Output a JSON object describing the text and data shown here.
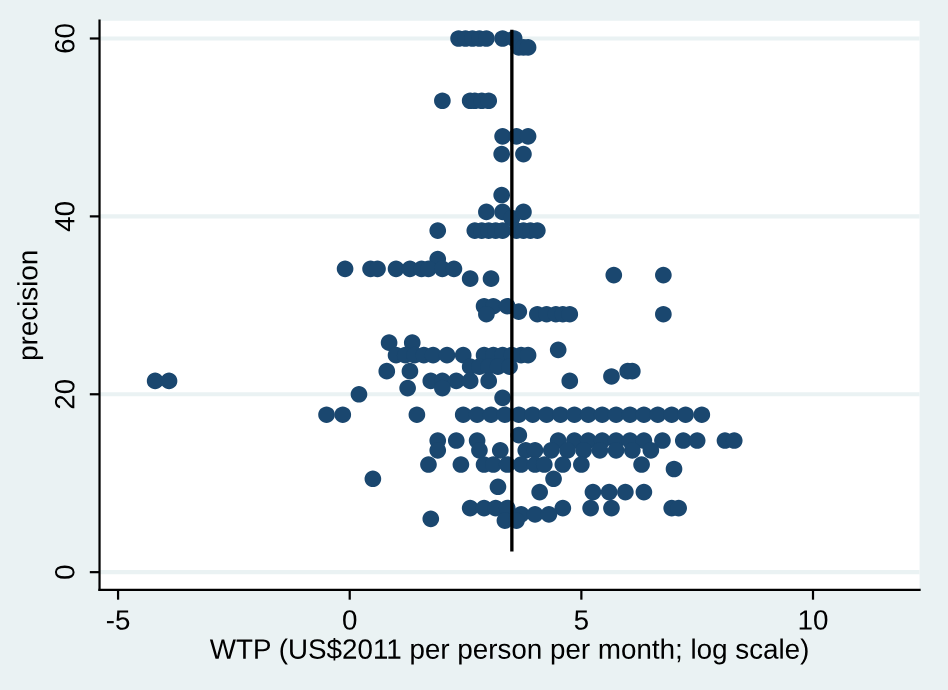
{
  "chart_data": {
    "type": "scatter",
    "xlabel": "WTP (US$2011 per person per month; log scale)",
    "ylabel": "precision",
    "xlim": [
      -5.4,
      12.3
    ],
    "ylim": [
      -2,
      62
    ],
    "xticks": [
      -5,
      0,
      5,
      10
    ],
    "yticks": [
      0,
      20,
      40,
      60
    ],
    "grid": "y",
    "series": [
      {
        "color": "#1a476f",
        "marker": "circle",
        "x": [
          2.35,
          2.5,
          2.65,
          2.8,
          2.95,
          3.3,
          3.55,
          3.65,
          3.75,
          3.85,
          2.0,
          2.6,
          2.7,
          2.85,
          3.0,
          3.3,
          3.6,
          3.85,
          3.28,
          3.75,
          3.28,
          2.95,
          3.3,
          3.5,
          3.75,
          1.9,
          2.7,
          2.85,
          3.0,
          3.15,
          3.3,
          3.6,
          3.75,
          3.9,
          4.05,
          1.9,
          -0.1,
          0.45,
          0.6,
          1.0,
          1.3,
          1.55,
          1.7,
          2.0,
          2.25,
          5.7,
          6.77,
          2.6,
          3.05,
          2.9,
          3.1,
          3.4,
          3.65,
          2.95,
          4.05,
          4.25,
          4.45,
          4.6,
          4.75,
          6.77,
          0.85,
          1.35,
          1.0,
          1.2,
          1.4,
          1.6,
          1.8,
          2.1,
          2.45,
          2.9,
          3.1,
          3.3,
          3.5,
          3.7,
          3.85,
          4.5,
          2.6,
          2.8,
          3.0,
          3.2,
          3.45,
          0.8,
          1.3,
          6.0,
          6.1,
          -4.2,
          -3.9,
          1.75,
          2.0,
          2.3,
          2.6,
          3.0,
          4.75,
          5.65,
          1.25,
          2.0,
          0.2,
          3.3,
          -0.5,
          -0.15,
          1.45,
          2.45,
          2.75,
          3.05,
          3.35,
          3.65,
          3.95,
          4.25,
          4.55,
          4.85,
          5.15,
          5.45,
          5.75,
          6.05,
          6.35,
          6.65,
          6.95,
          7.25,
          7.6,
          1.9,
          2.3,
          2.75,
          3.65,
          4.5,
          4.85,
          5.15,
          5.45,
          5.75,
          6.05,
          6.35,
          6.75,
          7.2,
          7.5,
          8.1,
          8.3,
          1.9,
          2.8,
          3.25,
          3.8,
          4.0,
          4.35,
          4.7,
          5.05,
          5.4,
          5.75,
          6.1,
          6.5,
          1.7,
          2.4,
          2.9,
          3.1,
          3.4,
          3.7,
          4.0,
          4.2,
          4.6,
          5.0,
          6.3,
          7.0,
          0.5,
          3.2,
          4.4,
          4.1,
          5.25,
          5.6,
          5.95,
          6.35,
          2.6,
          2.9,
          3.15,
          3.4,
          4.6,
          5.2,
          5.65,
          6.95,
          7.1,
          3.7,
          4.0,
          4.3,
          1.75,
          3.35,
          3.6
        ],
        "values": [
          60,
          60,
          60,
          60,
          60,
          60,
          60,
          59,
          59,
          59,
          53,
          53,
          53,
          53,
          53,
          49,
          49,
          49,
          47,
          47,
          42.4,
          40.5,
          40.5,
          39.8,
          40.5,
          38.4,
          38.4,
          38.4,
          38.4,
          38.4,
          38.4,
          38.4,
          38.4,
          38.4,
          38.4,
          35.2,
          34.1,
          34.1,
          34.1,
          34.1,
          34.1,
          34.1,
          34.1,
          34.1,
          34.1,
          33.4,
          33.4,
          33,
          33,
          29.9,
          29.9,
          29.9,
          29.3,
          29,
          29,
          29,
          29,
          29,
          29,
          29,
          25.8,
          25.8,
          24.4,
          24.4,
          24.4,
          24.4,
          24.4,
          24.4,
          24.4,
          24.4,
          24.4,
          24.4,
          24.4,
          24.4,
          24.4,
          25,
          23.1,
          23.1,
          23.1,
          23.1,
          23.1,
          22.6,
          22.6,
          22.6,
          22.6,
          21.5,
          21.5,
          21.5,
          21.5,
          21.5,
          21.5,
          21.5,
          21.5,
          22,
          20.7,
          20.7,
          20,
          19.6,
          17.7,
          17.7,
          17.7,
          17.7,
          17.7,
          17.7,
          17.7,
          17.7,
          17.7,
          17.7,
          17.7,
          17.7,
          17.7,
          17.7,
          17.7,
          17.7,
          17.7,
          17.7,
          17.7,
          17.7,
          17.7,
          14.8,
          14.8,
          14.8,
          15.4,
          14.8,
          14.8,
          14.8,
          14.8,
          14.8,
          14.8,
          14.8,
          14.8,
          14.8,
          14.8,
          14.8,
          14.8,
          13.7,
          13.7,
          13.7,
          13.7,
          13.7,
          13.7,
          13.7,
          13.7,
          13.7,
          13.7,
          13.7,
          13.7,
          12.1,
          12.1,
          12.1,
          12.1,
          12.1,
          12.1,
          12.1,
          12.1,
          12.1,
          12.1,
          12.1,
          11.6,
          10.5,
          9.6,
          10.5,
          9,
          9,
          9,
          9,
          9,
          7.2,
          7.2,
          7.2,
          7.2,
          7.2,
          7.2,
          7.2,
          7.2,
          7.2,
          6.5,
          6.5,
          6.5,
          6,
          5.8,
          5.8
        ]
      },
      {
        "type": "line",
        "color": "#000000",
        "marker": "none",
        "x": [
          3.5,
          3.5
        ],
        "values": [
          2.5,
          60.8
        ]
      }
    ]
  }
}
